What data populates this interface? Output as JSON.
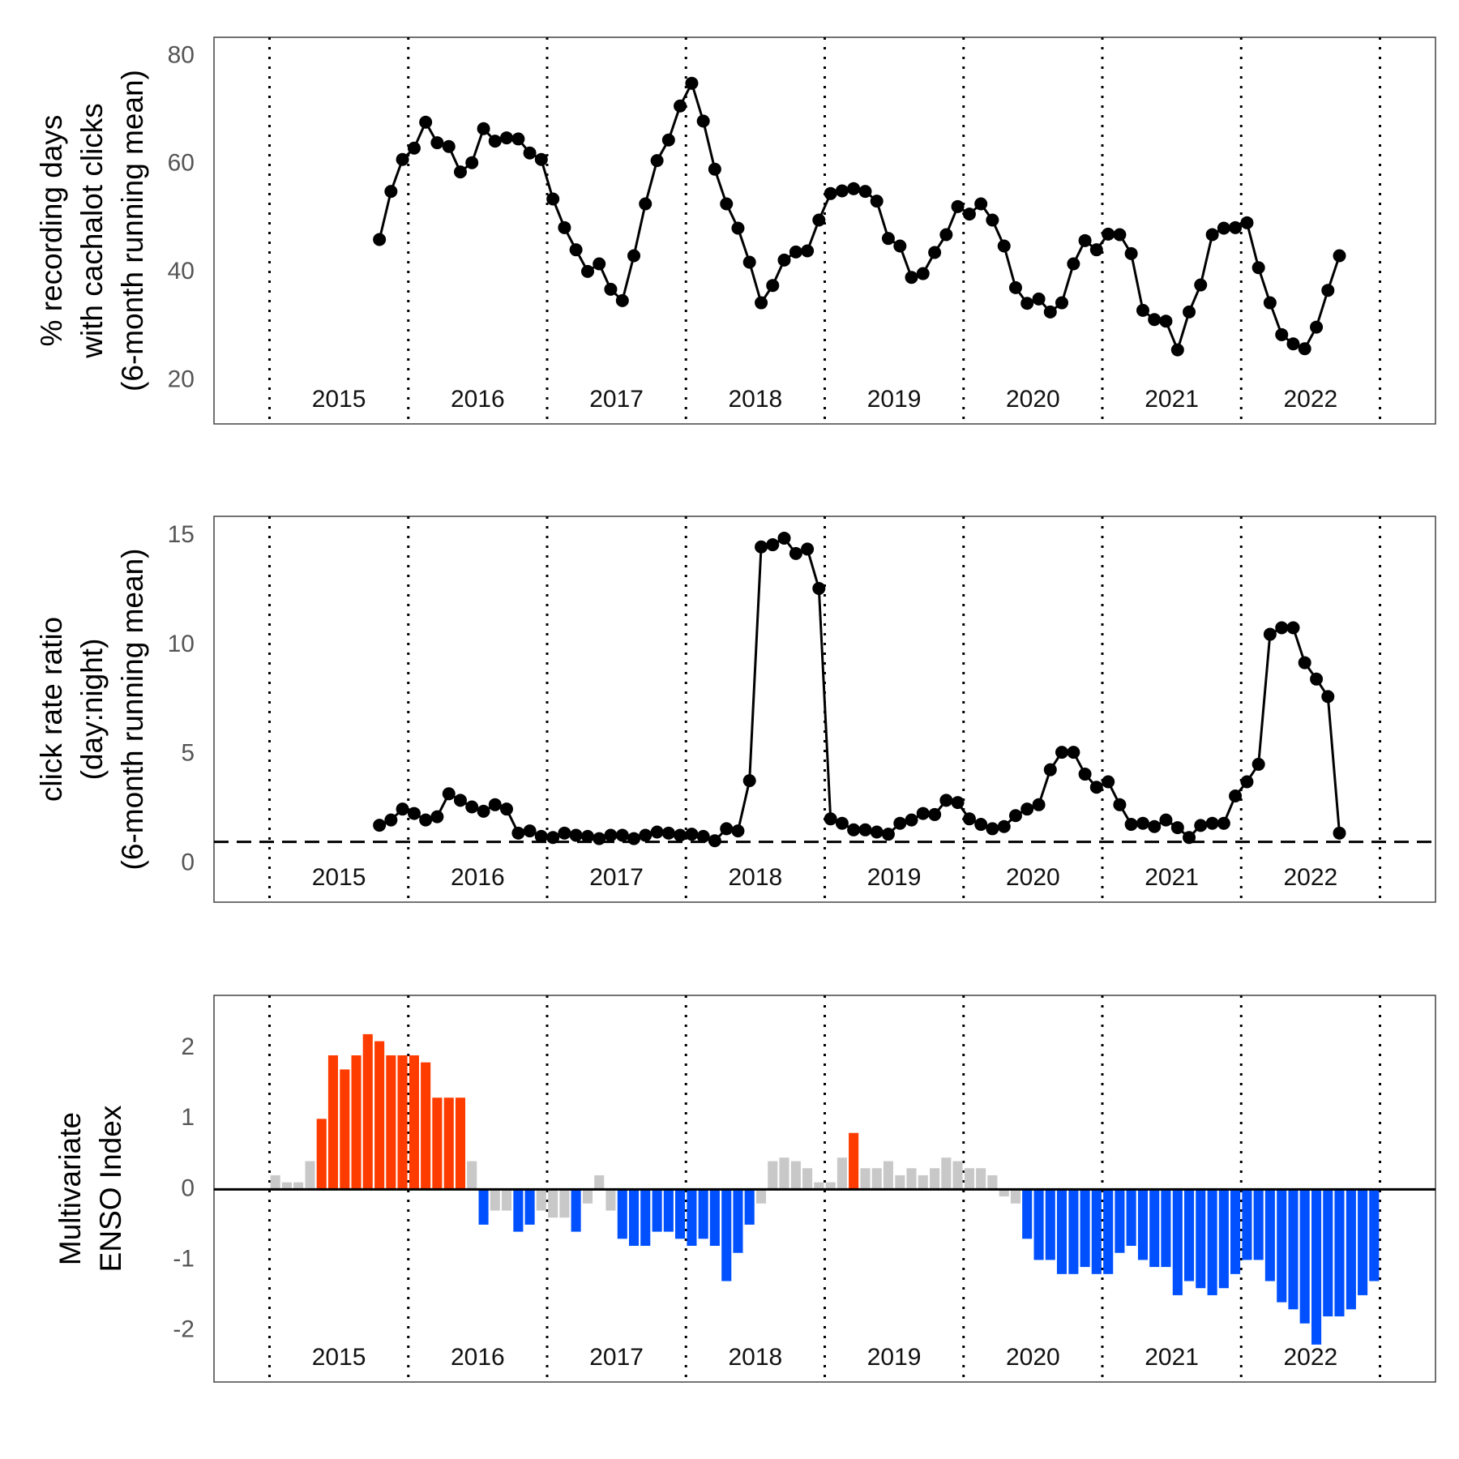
{
  "chart_data": [
    {
      "type": "line",
      "color": "#000000",
      "ylabel": [
        "% recording days",
        "with cachalot clicks",
        "(6-month running mean)"
      ],
      "xlim": [
        2014.6,
        2023.4
      ],
      "ylim": [
        12,
        83.5
      ],
      "yticks": [
        20,
        40,
        60,
        80
      ],
      "vlines": [
        2015,
        2016,
        2017,
        2018,
        2019,
        2020,
        2021,
        2022,
        2023
      ],
      "year_labels": [
        "2015",
        "2016",
        "2017",
        "2018",
        "2019",
        "2020",
        "2021",
        "2022"
      ],
      "x": [
        2015.792,
        2015.875,
        2015.958,
        2016.042,
        2016.125,
        2016.208,
        2016.292,
        2016.375,
        2016.458,
        2016.542,
        2016.625,
        2016.708,
        2016.792,
        2016.875,
        2016.958,
        2017.042,
        2017.125,
        2017.208,
        2017.292,
        2017.375,
        2017.458,
        2017.542,
        2017.625,
        2017.708,
        2017.792,
        2017.875,
        2017.958,
        2018.042,
        2018.125,
        2018.208,
        2018.292,
        2018.375,
        2018.458,
        2018.542,
        2018.625,
        2018.708,
        2018.792,
        2018.875,
        2018.958,
        2019.042,
        2019.125,
        2019.208,
        2019.292,
        2019.375,
        2019.458,
        2019.542,
        2019.625,
        2019.708,
        2019.792,
        2019.875,
        2019.958,
        2020.042,
        2020.125,
        2020.208,
        2020.292,
        2020.375,
        2020.458,
        2020.542,
        2020.625,
        2020.708,
        2020.792,
        2020.875,
        2020.958,
        2021.042,
        2021.125,
        2021.208,
        2021.292,
        2021.375,
        2021.458,
        2021.542,
        2021.625,
        2021.708,
        2021.792,
        2021.875,
        2021.958,
        2022.042,
        2022.125,
        2022.208,
        2022.292,
        2022.375,
        2022.458,
        2022.542,
        2022.625,
        2022.708
      ],
      "values": [
        46.1,
        55.0,
        60.9,
        63.0,
        67.8,
        64.0,
        63.3,
        58.6,
        60.3,
        66.6,
        64.3,
        64.9,
        64.7,
        62.1,
        60.9,
        53.6,
        48.3,
        44.2,
        40.2,
        41.6,
        36.9,
        34.8,
        43.1,
        52.7,
        60.7,
        64.5,
        70.8,
        75.0,
        68.0,
        59.1,
        52.7,
        48.2,
        41.9,
        34.4,
        37.6,
        42.3,
        43.8,
        44.0,
        49.7,
        54.6,
        55.1,
        55.5,
        55.0,
        53.2,
        46.3,
        44.9,
        39.1,
        39.8,
        43.7,
        47.0,
        52.2,
        50.8,
        52.7,
        49.7,
        44.9,
        37.2,
        34.3,
        35.1,
        32.7,
        34.4,
        41.6,
        45.9,
        44.2,
        47.1,
        47.0,
        43.5,
        33.0,
        31.3,
        31.0,
        25.7,
        32.7,
        37.7,
        47.0,
        48.2,
        48.3,
        49.2,
        40.9,
        34.4,
        28.5,
        26.8,
        25.9,
        29.9,
        36.7,
        43.1
      ]
    },
    {
      "type": "line",
      "color": "#000000",
      "ylabel": [
        "click rate ratio",
        "(day:night)",
        "(6-month running mean)"
      ],
      "xlim": [
        2014.6,
        2023.4
      ],
      "ylim": [
        -1.76,
        15.9
      ],
      "yticks": [
        0,
        5,
        10,
        15
      ],
      "hline": 1,
      "hline_style": "dashed",
      "vlines": [
        2015,
        2016,
        2017,
        2018,
        2019,
        2020,
        2021,
        2022,
        2023
      ],
      "year_labels": [
        "2015",
        "2016",
        "2017",
        "2018",
        "2019",
        "2020",
        "2021",
        "2022"
      ],
      "x": [
        2015.792,
        2015.875,
        2015.958,
        2016.042,
        2016.125,
        2016.208,
        2016.292,
        2016.375,
        2016.458,
        2016.542,
        2016.625,
        2016.708,
        2016.792,
        2016.875,
        2016.958,
        2017.042,
        2017.125,
        2017.208,
        2017.292,
        2017.375,
        2017.458,
        2017.542,
        2017.625,
        2017.708,
        2017.792,
        2017.875,
        2017.958,
        2018.042,
        2018.125,
        2018.208,
        2018.292,
        2018.375,
        2018.458,
        2018.542,
        2018.625,
        2018.708,
        2018.792,
        2018.875,
        2018.958,
        2019.042,
        2019.125,
        2019.208,
        2019.292,
        2019.375,
        2019.458,
        2019.542,
        2019.625,
        2019.708,
        2019.792,
        2019.875,
        2019.958,
        2020.042,
        2020.125,
        2020.208,
        2020.292,
        2020.375,
        2020.458,
        2020.542,
        2020.625,
        2020.708,
        2020.792,
        2020.875,
        2020.958,
        2021.042,
        2021.125,
        2021.208,
        2021.292,
        2021.375,
        2021.458,
        2021.542,
        2021.625,
        2021.708,
        2021.792,
        2021.875,
        2021.958,
        2022.042,
        2022.125,
        2022.208,
        2022.292,
        2022.375,
        2022.458,
        2022.542,
        2022.625,
        2022.708
      ],
      "values": [
        1.76,
        2.0,
        2.5,
        2.3,
        2.0,
        2.15,
        3.2,
        2.9,
        2.6,
        2.4,
        2.7,
        2.5,
        1.4,
        1.5,
        1.25,
        1.2,
        1.4,
        1.3,
        1.25,
        1.15,
        1.3,
        1.3,
        1.15,
        1.3,
        1.45,
        1.4,
        1.3,
        1.35,
        1.25,
        1.05,
        1.6,
        1.5,
        3.8,
        14.5,
        14.6,
        14.9,
        14.2,
        14.4,
        12.6,
        2.05,
        1.85,
        1.55,
        1.55,
        1.45,
        1.35,
        1.85,
        2.0,
        2.3,
        2.25,
        2.9,
        2.8,
        2.05,
        1.8,
        1.6,
        1.7,
        2.2,
        2.5,
        2.7,
        4.3,
        5.1,
        5.1,
        4.1,
        3.5,
        3.75,
        2.7,
        1.8,
        1.85,
        1.7,
        2.0,
        1.65,
        1.2,
        1.75,
        1.85,
        1.85,
        3.1,
        3.75,
        4.55,
        10.5,
        10.8,
        10.8,
        9.2,
        8.45,
        7.65,
        1.4
      ]
    },
    {
      "type": "bar",
      "ylabel": [
        "Multivariate",
        "ENSO Index"
      ],
      "xlim": [
        2014.6,
        2023.4
      ],
      "ylim": [
        -2.73,
        2.75
      ],
      "yticks": [
        -2,
        -1,
        0,
        1,
        2
      ],
      "hline": 0,
      "hline_style": "solid",
      "threshold": 0.5,
      "colors": {
        "positive": "#ff3c00",
        "negative": "#0050ff",
        "neutral": "#c8c8c8"
      },
      "vlines": [
        2015,
        2016,
        2017,
        2018,
        2019,
        2020,
        2021,
        2022,
        2023
      ],
      "year_labels": [
        "2015",
        "2016",
        "2017",
        "2018",
        "2019",
        "2020",
        "2021",
        "2022"
      ],
      "x": [
        2015.042,
        2015.125,
        2015.208,
        2015.292,
        2015.375,
        2015.458,
        2015.542,
        2015.625,
        2015.708,
        2015.792,
        2015.875,
        2015.958,
        2016.042,
        2016.125,
        2016.208,
        2016.292,
        2016.375,
        2016.458,
        2016.542,
        2016.625,
        2016.708,
        2016.792,
        2016.875,
        2016.958,
        2017.042,
        2017.125,
        2017.208,
        2017.292,
        2017.375,
        2017.458,
        2017.542,
        2017.625,
        2017.708,
        2017.792,
        2017.875,
        2017.958,
        2018.042,
        2018.125,
        2018.208,
        2018.292,
        2018.375,
        2018.458,
        2018.542,
        2018.625,
        2018.708,
        2018.792,
        2018.875,
        2018.958,
        2019.042,
        2019.125,
        2019.208,
        2019.292,
        2019.375,
        2019.458,
        2019.542,
        2019.625,
        2019.708,
        2019.792,
        2019.875,
        2019.958,
        2020.042,
        2020.125,
        2020.208,
        2020.292,
        2020.375,
        2020.458,
        2020.542,
        2020.625,
        2020.708,
        2020.792,
        2020.875,
        2020.958,
        2021.042,
        2021.125,
        2021.208,
        2021.292,
        2021.375,
        2021.458,
        2021.542,
        2021.625,
        2021.708,
        2021.792,
        2021.875,
        2021.958,
        2022.042,
        2022.125,
        2022.208,
        2022.292,
        2022.375,
        2022.458,
        2022.542,
        2022.625,
        2022.708,
        2022.792,
        2022.875,
        2022.958
      ],
      "values": [
        0.2,
        0.1,
        0.1,
        0.4,
        1.0,
        1.9,
        1.7,
        1.9,
        2.2,
        2.1,
        1.9,
        1.9,
        1.9,
        1.8,
        1.3,
        1.3,
        1.3,
        0.4,
        -0.5,
        -0.3,
        -0.3,
        -0.6,
        -0.5,
        -0.3,
        -0.4,
        -0.4,
        -0.6,
        -0.2,
        0.2,
        -0.3,
        -0.7,
        -0.8,
        -0.8,
        -0.6,
        -0.6,
        -0.7,
        -0.8,
        -0.7,
        -0.8,
        -1.3,
        -0.9,
        -0.5,
        -0.2,
        0.4,
        0.45,
        0.4,
        0.3,
        0.1,
        0.1,
        0.45,
        0.8,
        0.3,
        0.3,
        0.4,
        0.2,
        0.3,
        0.2,
        0.3,
        0.45,
        0.4,
        0.3,
        0.3,
        0.2,
        -0.1,
        -0.2,
        -0.7,
        -1.0,
        -1.0,
        -1.2,
        -1.2,
        -1.1,
        -1.2,
        -1.2,
        -0.9,
        -0.8,
        -1.0,
        -1.1,
        -1.1,
        -1.5,
        -1.3,
        -1.4,
        -1.5,
        -1.4,
        -1.2,
        -1.0,
        -1.0,
        -1.3,
        -1.6,
        -1.7,
        -1.9,
        -2.2,
        -1.8,
        -1.8,
        -1.7,
        -1.5,
        -1.3
      ]
    }
  ]
}
